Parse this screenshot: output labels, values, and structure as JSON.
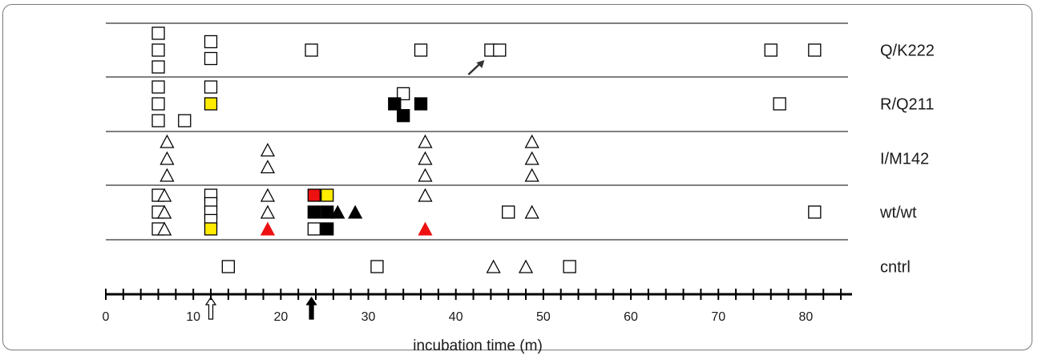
{
  "chart_data": {
    "type": "scatter",
    "xlabel": "incubation time (m)",
    "xlim": [
      0,
      85
    ],
    "x_ticks": [
      0,
      10,
      20,
      30,
      40,
      50,
      60,
      70,
      80
    ],
    "grid": false,
    "rows": [
      "Q/K222",
      "R/Q211",
      "I/M142",
      "wt/wt",
      "cntrl"
    ],
    "colors": {
      "white": "#ffffff",
      "yellow": "#ffeb00",
      "red": "#ee1111",
      "black": "#000000",
      "stroke": "#000000"
    },
    "markers": [
      {
        "shape": "square",
        "fill": "white",
        "x": 6,
        "row": "Q/K222",
        "stack": 2
      },
      {
        "shape": "square",
        "fill": "white",
        "x": 6,
        "row": "Q/K222",
        "stack": 1
      },
      {
        "shape": "square",
        "fill": "white",
        "x": 6,
        "row": "Q/K222",
        "stack": 0
      },
      {
        "shape": "square",
        "fill": "white",
        "x": 12,
        "row": "Q/K222",
        "stack": 1.5
      },
      {
        "shape": "square",
        "fill": "white",
        "x": 12,
        "row": "Q/K222",
        "stack": 0.5
      },
      {
        "shape": "square",
        "fill": "white",
        "x": 23.5,
        "row": "Q/K222",
        "stack": 1
      },
      {
        "shape": "square",
        "fill": "white",
        "x": 36,
        "row": "Q/K222",
        "stack": 1
      },
      {
        "shape": "square",
        "fill": "white",
        "x": 44,
        "row": "Q/K222",
        "stack": 1
      },
      {
        "shape": "square",
        "fill": "white",
        "x": 45,
        "row": "Q/K222",
        "stack": 1
      },
      {
        "shape": "square",
        "fill": "white",
        "x": 76,
        "row": "Q/K222",
        "stack": 1
      },
      {
        "shape": "square",
        "fill": "white",
        "x": 81,
        "row": "Q/K222",
        "stack": 1
      },
      {
        "shape": "square",
        "fill": "white",
        "x": 6,
        "row": "R/Q211",
        "stack": 2
      },
      {
        "shape": "square",
        "fill": "white",
        "x": 6,
        "row": "R/Q211",
        "stack": 1
      },
      {
        "shape": "square",
        "fill": "white",
        "x": 6,
        "row": "R/Q211",
        "stack": 0
      },
      {
        "shape": "square",
        "fill": "white",
        "x": 9,
        "row": "R/Q211",
        "stack": 0
      },
      {
        "shape": "square",
        "fill": "white",
        "x": 12,
        "row": "R/Q211",
        "stack": 2
      },
      {
        "shape": "square",
        "fill": "yellow",
        "x": 12,
        "row": "R/Q211",
        "stack": 1
      },
      {
        "shape": "square",
        "fill": "white",
        "x": 34,
        "row": "R/Q211",
        "stack": 1.6
      },
      {
        "shape": "square",
        "fill": "black",
        "x": 33,
        "row": "R/Q211",
        "stack": 1
      },
      {
        "shape": "square",
        "fill": "black",
        "x": 36,
        "row": "R/Q211",
        "stack": 1
      },
      {
        "shape": "square",
        "fill": "black",
        "x": 34,
        "row": "R/Q211",
        "stack": 0.3
      },
      {
        "shape": "square",
        "fill": "white",
        "x": 77,
        "row": "R/Q211",
        "stack": 1
      },
      {
        "shape": "triangle",
        "fill": "white",
        "x": 7,
        "row": "I/M142",
        "stack": 2
      },
      {
        "shape": "triangle",
        "fill": "white",
        "x": 7,
        "row": "I/M142",
        "stack": 1
      },
      {
        "shape": "triangle",
        "fill": "white",
        "x": 7,
        "row": "I/M142",
        "stack": 0
      },
      {
        "shape": "triangle",
        "fill": "white",
        "x": 18.5,
        "row": "I/M142",
        "stack": 1.5
      },
      {
        "shape": "triangle",
        "fill": "white",
        "x": 18.5,
        "row": "I/M142",
        "stack": 0.5
      },
      {
        "shape": "triangle",
        "fill": "white",
        "x": 36.5,
        "row": "I/M142",
        "stack": 2
      },
      {
        "shape": "triangle",
        "fill": "white",
        "x": 36.5,
        "row": "I/M142",
        "stack": 1
      },
      {
        "shape": "triangle",
        "fill": "white",
        "x": 36.5,
        "row": "I/M142",
        "stack": 0
      },
      {
        "shape": "triangle",
        "fill": "white",
        "x": 48.7,
        "row": "I/M142",
        "stack": 2
      },
      {
        "shape": "triangle",
        "fill": "white",
        "x": 48.7,
        "row": "I/M142",
        "stack": 1
      },
      {
        "shape": "triangle",
        "fill": "white",
        "x": 48.7,
        "row": "I/M142",
        "stack": 0
      },
      {
        "shape": "square",
        "fill": "white",
        "x": 6,
        "row": "wt/wt",
        "stack": 2
      },
      {
        "shape": "square",
        "fill": "white",
        "x": 6,
        "row": "wt/wt",
        "stack": 1
      },
      {
        "shape": "square",
        "fill": "white",
        "x": 6,
        "row": "wt/wt",
        "stack": 0
      },
      {
        "shape": "triangle",
        "fill": "white",
        "x": 6.7,
        "row": "wt/wt",
        "stack": 2
      },
      {
        "shape": "triangle",
        "fill": "white",
        "x": 6.7,
        "row": "wt/wt",
        "stack": 1
      },
      {
        "shape": "triangle",
        "fill": "white",
        "x": 6.7,
        "row": "wt/wt",
        "stack": 0
      },
      {
        "shape": "square",
        "fill": "white",
        "x": 12,
        "row": "wt/wt",
        "stack": 2
      },
      {
        "shape": "square",
        "fill": "white",
        "x": 12,
        "row": "wt/wt",
        "stack": 1.5
      },
      {
        "shape": "square",
        "fill": "white",
        "x": 12,
        "row": "wt/wt",
        "stack": 1
      },
      {
        "shape": "square",
        "fill": "white",
        "x": 12,
        "row": "wt/wt",
        "stack": 0.5
      },
      {
        "shape": "square",
        "fill": "yellow",
        "x": 12,
        "row": "wt/wt",
        "stack": 0
      },
      {
        "shape": "triangle",
        "fill": "white",
        "x": 18.5,
        "row": "wt/wt",
        "stack": 2
      },
      {
        "shape": "triangle",
        "fill": "white",
        "x": 18.5,
        "row": "wt/wt",
        "stack": 1
      },
      {
        "shape": "triangle",
        "fill": "red",
        "x": 18.5,
        "row": "wt/wt",
        "stack": 0
      },
      {
        "shape": "square",
        "fill": "red",
        "x": 23.8,
        "row": "wt/wt",
        "stack": 2
      },
      {
        "shape": "square",
        "fill": "yellow",
        "x": 25.3,
        "row": "wt/wt",
        "stack": 2
      },
      {
        "shape": "square",
        "fill": "black",
        "x": 23.8,
        "row": "wt/wt",
        "stack": 1
      },
      {
        "shape": "square",
        "fill": "black",
        "x": 25.3,
        "row": "wt/wt",
        "stack": 1
      },
      {
        "shape": "triangle",
        "fill": "black",
        "x": 26.5,
        "row": "wt/wt",
        "stack": 1
      },
      {
        "shape": "triangle",
        "fill": "black",
        "x": 28.5,
        "row": "wt/wt",
        "stack": 1
      },
      {
        "shape": "square",
        "fill": "white",
        "x": 23.8,
        "row": "wt/wt",
        "stack": 0
      },
      {
        "shape": "square",
        "fill": "black",
        "x": 25.3,
        "row": "wt/wt",
        "stack": 0
      },
      {
        "shape": "triangle",
        "fill": "white",
        "x": 36.5,
        "row": "wt/wt",
        "stack": 2
      },
      {
        "shape": "triangle",
        "fill": "red",
        "x": 36.5,
        "row": "wt/wt",
        "stack": 0
      },
      {
        "shape": "square",
        "fill": "white",
        "x": 46,
        "row": "wt/wt",
        "stack": 1
      },
      {
        "shape": "triangle",
        "fill": "white",
        "x": 48.7,
        "row": "wt/wt",
        "stack": 1
      },
      {
        "shape": "square",
        "fill": "white",
        "x": 81,
        "row": "wt/wt",
        "stack": 1
      },
      {
        "shape": "square",
        "fill": "white",
        "x": 14,
        "row": "cntrl",
        "stack": 1
      },
      {
        "shape": "square",
        "fill": "white",
        "x": 31,
        "row": "cntrl",
        "stack": 1
      },
      {
        "shape": "triangle",
        "fill": "white",
        "x": 44.3,
        "row": "cntrl",
        "stack": 1
      },
      {
        "shape": "triangle",
        "fill": "white",
        "x": 48,
        "row": "cntrl",
        "stack": 1
      },
      {
        "shape": "square",
        "fill": "white",
        "x": 53,
        "row": "cntrl",
        "stack": 1
      }
    ],
    "annotations": [
      {
        "type": "diagonal-arrow",
        "row": "Q/K222",
        "target_x": 44
      },
      {
        "type": "axis-arrow",
        "fill": "white",
        "x": 12
      },
      {
        "type": "axis-arrow",
        "fill": "black",
        "x": 23.5
      }
    ]
  }
}
